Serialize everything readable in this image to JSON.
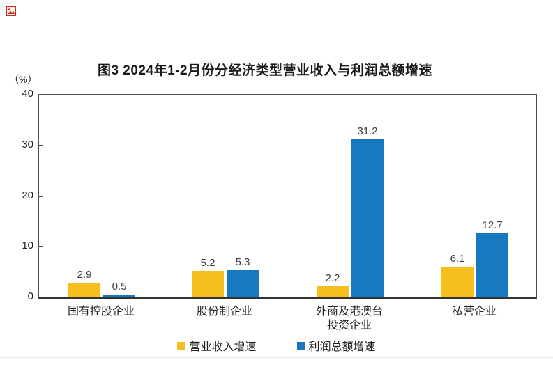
{
  "icons": {
    "broken_image_icon": {
      "color": "#d02a1a"
    }
  },
  "chart_data": {
    "type": "bar",
    "title": "图3 2024年1-2月份分经济类型营业收入与利润总额增速",
    "unit_label": "（%）",
    "categories": [
      "国有控股企业",
      "股份制企业",
      "外商及港澳台投资企业",
      "私营企业"
    ],
    "category_display_lines": [
      [
        "国有控股企业"
      ],
      [
        "股份制企业"
      ],
      [
        "外商及港澳台",
        "投资企业"
      ],
      [
        "私营企业"
      ]
    ],
    "series": [
      {
        "name": "营业收入增速",
        "color": "#F5C01D",
        "values": [
          2.9,
          5.2,
          2.2,
          6.1
        ]
      },
      {
        "name": "利润总额增速",
        "color": "#1878C0",
        "values": [
          0.5,
          5.3,
          31.2,
          12.7
        ]
      }
    ],
    "ylim": [
      0,
      40
    ],
    "yticks": [
      0,
      10,
      20,
      30,
      40
    ],
    "grid": false,
    "legend_position": "bottom",
    "axis_color": "#4d4d4d",
    "value_label_color": "#3a3a3a"
  }
}
